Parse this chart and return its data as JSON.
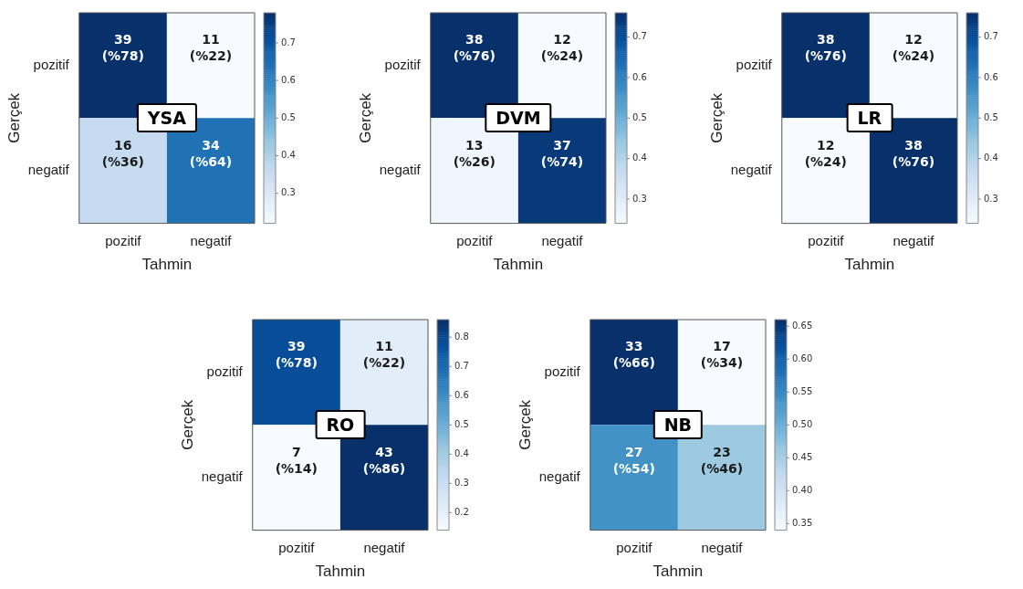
{
  "chart_data": [
    {
      "type": "heatmap",
      "title": "YSA",
      "xlabel": "Tahmin",
      "ylabel": "Gerçek",
      "categories": [
        "pozitif",
        "negatif"
      ],
      "y_categories": [
        "pozitif",
        "negatif"
      ],
      "cells": [
        [
          0.78,
          0.22
        ],
        [
          0.36,
          0.64
        ]
      ],
      "cell_labels": [
        [
          "39\n(%78)",
          "11\n(%22)"
        ],
        [
          "16\n(%36)",
          "34\n(%64)"
        ]
      ],
      "clim": [
        0.22,
        0.78
      ],
      "cticks": [
        0.3,
        0.4,
        0.5,
        0.6,
        0.7
      ]
    },
    {
      "type": "heatmap",
      "title": "DVM",
      "xlabel": "Tahmin",
      "ylabel": "Gerçek",
      "categories": [
        "pozitif",
        "negatif"
      ],
      "y_categories": [
        "pozitif",
        "negatif"
      ],
      "cells": [
        [
          0.76,
          0.24
        ],
        [
          0.26,
          0.74
        ]
      ],
      "cell_labels": [
        [
          "38\n(%76)",
          "12\n(%24)"
        ],
        [
          "13\n(%26)",
          "37\n(%74)"
        ]
      ],
      "clim": [
        0.24,
        0.76
      ],
      "cticks": [
        0.3,
        0.4,
        0.5,
        0.6,
        0.7
      ]
    },
    {
      "type": "heatmap",
      "title": "LR",
      "xlabel": "Tahmin",
      "ylabel": "Gerçek",
      "categories": [
        "pozitif",
        "negatif"
      ],
      "y_categories": [
        "pozitif",
        "negatif"
      ],
      "cells": [
        [
          0.76,
          0.24
        ],
        [
          0.24,
          0.76
        ]
      ],
      "cell_labels": [
        [
          "38\n(%76)",
          "12\n(%24)"
        ],
        [
          "12\n(%24)",
          "38\n(%76)"
        ]
      ],
      "clim": [
        0.24,
        0.76
      ],
      "cticks": [
        0.3,
        0.4,
        0.5,
        0.6,
        0.7
      ]
    },
    {
      "type": "heatmap",
      "title": "RO",
      "xlabel": "Tahmin",
      "ylabel": "Gerçek",
      "categories": [
        "pozitif",
        "negatif"
      ],
      "y_categories": [
        "pozitif",
        "negatif"
      ],
      "cells": [
        [
          0.78,
          0.22
        ],
        [
          0.14,
          0.86
        ]
      ],
      "cell_labels": [
        [
          "39\n(%78)",
          "11\n(%22)"
        ],
        [
          "7\n(%14)",
          "43\n(%86)"
        ]
      ],
      "clim": [
        0.14,
        0.86
      ],
      "cticks": [
        0.2,
        0.3,
        0.4,
        0.5,
        0.6,
        0.7,
        0.8
      ]
    },
    {
      "type": "heatmap",
      "title": "NB",
      "xlabel": "Tahmin",
      "ylabel": "Gerçek",
      "categories": [
        "pozitif",
        "negatif"
      ],
      "y_categories": [
        "pozitif",
        "negatif"
      ],
      "cells": [
        [
          0.66,
          0.34
        ],
        [
          0.54,
          0.46
        ]
      ],
      "cell_labels": [
        [
          "33\n(%66)",
          "17\n(%34)"
        ],
        [
          "27\n(%54)",
          "23\n(%46)"
        ]
      ],
      "clim": [
        0.34,
        0.66
      ],
      "cticks": [
        0.35,
        {
          "value": 0.4,
          "label": "0.40"
        },
        0.45,
        {
          "value": 0.5,
          "label": "0.50"
        },
        0.55,
        {
          "value": 0.6,
          "label": "0.60"
        },
        0.65
      ]
    }
  ]
}
